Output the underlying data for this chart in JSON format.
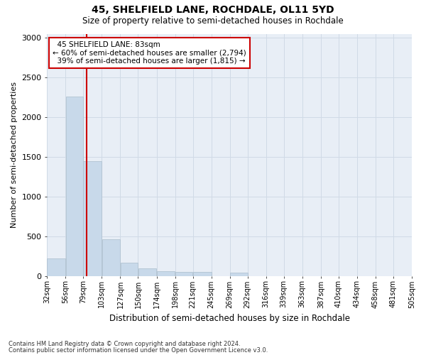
{
  "title": "45, SHELFIELD LANE, ROCHDALE, OL11 5YD",
  "subtitle": "Size of property relative to semi-detached houses in Rochdale",
  "xlabel": "Distribution of semi-detached houses by size in Rochdale",
  "ylabel": "Number of semi-detached properties",
  "footnote1": "Contains HM Land Registry data © Crown copyright and database right 2024.",
  "footnote2": "Contains public sector information licensed under the Open Government Licence v3.0.",
  "property_size": 83,
  "property_label": "45 SHELFIELD LANE: 83sqm",
  "smaller_pct": "60%",
  "smaller_count": "2,794",
  "larger_pct": "39%",
  "larger_count": "1,815",
  "bar_color": "#c8d9ea",
  "bar_edge_color": "#aabdcc",
  "red_line_color": "#cc0000",
  "annotation_box_color": "#cc0000",
  "grid_color": "#d0dae6",
  "background_color": "#e8eef6",
  "bin_edges": [
    32,
    56,
    79,
    103,
    127,
    150,
    174,
    198,
    221,
    245,
    269,
    292,
    316,
    339,
    363,
    387,
    410,
    434,
    458,
    481,
    505
  ],
  "bin_labels": [
    "32sqm",
    "56sqm",
    "79sqm",
    "103sqm",
    "127sqm",
    "150sqm",
    "174sqm",
    "198sqm",
    "221sqm",
    "245sqm",
    "269sqm",
    "292sqm",
    "316sqm",
    "339sqm",
    "363sqm",
    "387sqm",
    "410sqm",
    "434sqm",
    "458sqm",
    "481sqm",
    "505sqm"
  ],
  "bar_heights": [
    220,
    2260,
    1450,
    460,
    170,
    100,
    60,
    50,
    50,
    0,
    45,
    0,
    0,
    0,
    0,
    0,
    0,
    0,
    0,
    0
  ],
  "ylim": [
    0,
    3050
  ],
  "yticks": [
    0,
    500,
    1000,
    1500,
    2000,
    2500,
    3000
  ]
}
